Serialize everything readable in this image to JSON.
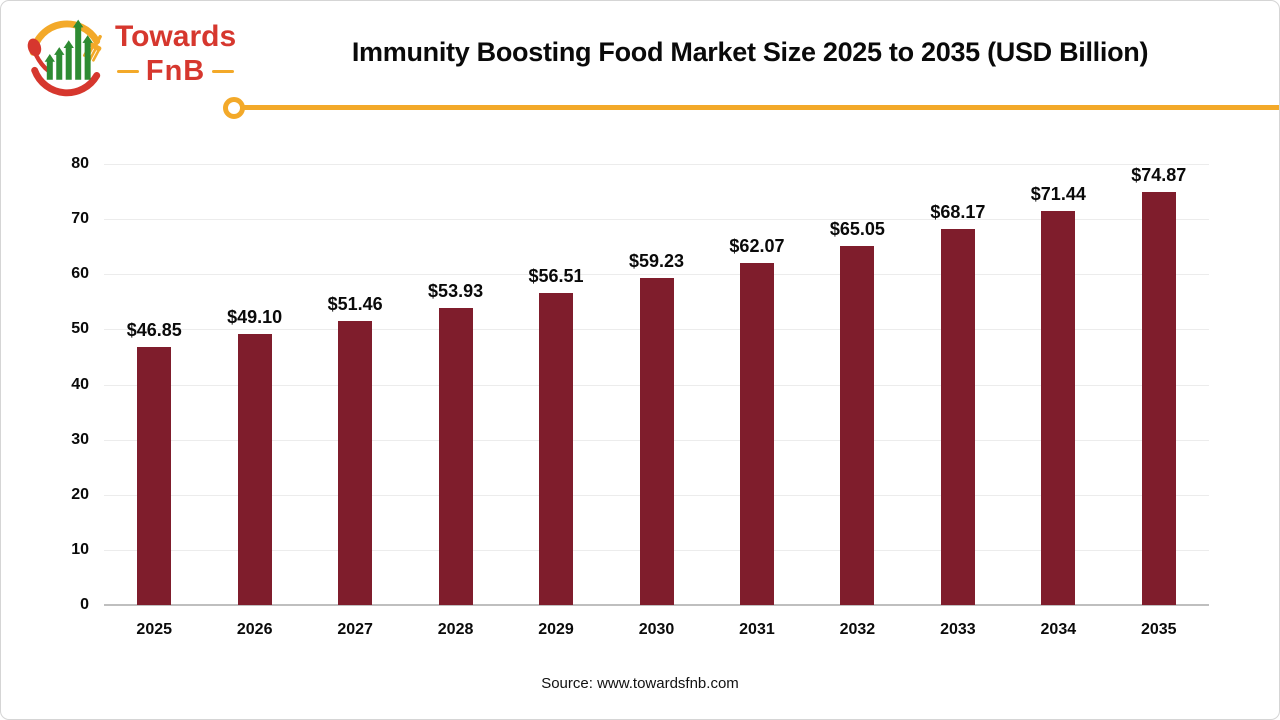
{
  "header": {
    "title": "Immunity Boosting Food Market Size 2025 to 2035 (USD Billion)",
    "divider_color": "#F3A929",
    "logo": {
      "brand_top": "Towards",
      "brand_bottom": "FnB",
      "icon": "bar-chart-spoon-fork-icon",
      "red": "#D6372E",
      "orange": "#F3A929",
      "green": "#2E8B33"
    }
  },
  "chart_data": {
    "type": "bar",
    "title": "Immunity Boosting Food Market Size 2025 to 2035 (USD Billion)",
    "unit": "USD Billion",
    "categories": [
      "2025",
      "2026",
      "2027",
      "2028",
      "2029",
      "2030",
      "2031",
      "2032",
      "2033",
      "2034",
      "2035"
    ],
    "values": [
      46.85,
      49.1,
      51.46,
      53.93,
      56.51,
      59.23,
      62.07,
      65.05,
      68.17,
      71.44,
      74.87
    ],
    "value_labels": [
      "$46.85",
      "$49.10",
      "$51.46",
      "$53.93",
      "$56.51",
      "$59.23",
      "$62.07",
      "$65.05",
      "$68.17",
      "$71.44",
      "$74.87"
    ],
    "ylim": [
      0,
      80
    ],
    "ytick_step": 10,
    "grid": true,
    "legend_position": "none",
    "bar_color": "#7F1D2C",
    "gridline_color": "#ECECEC",
    "axis_line_color": "#BFBFBF"
  },
  "footer": {
    "source": "Source: www.towardsfnb.com"
  }
}
